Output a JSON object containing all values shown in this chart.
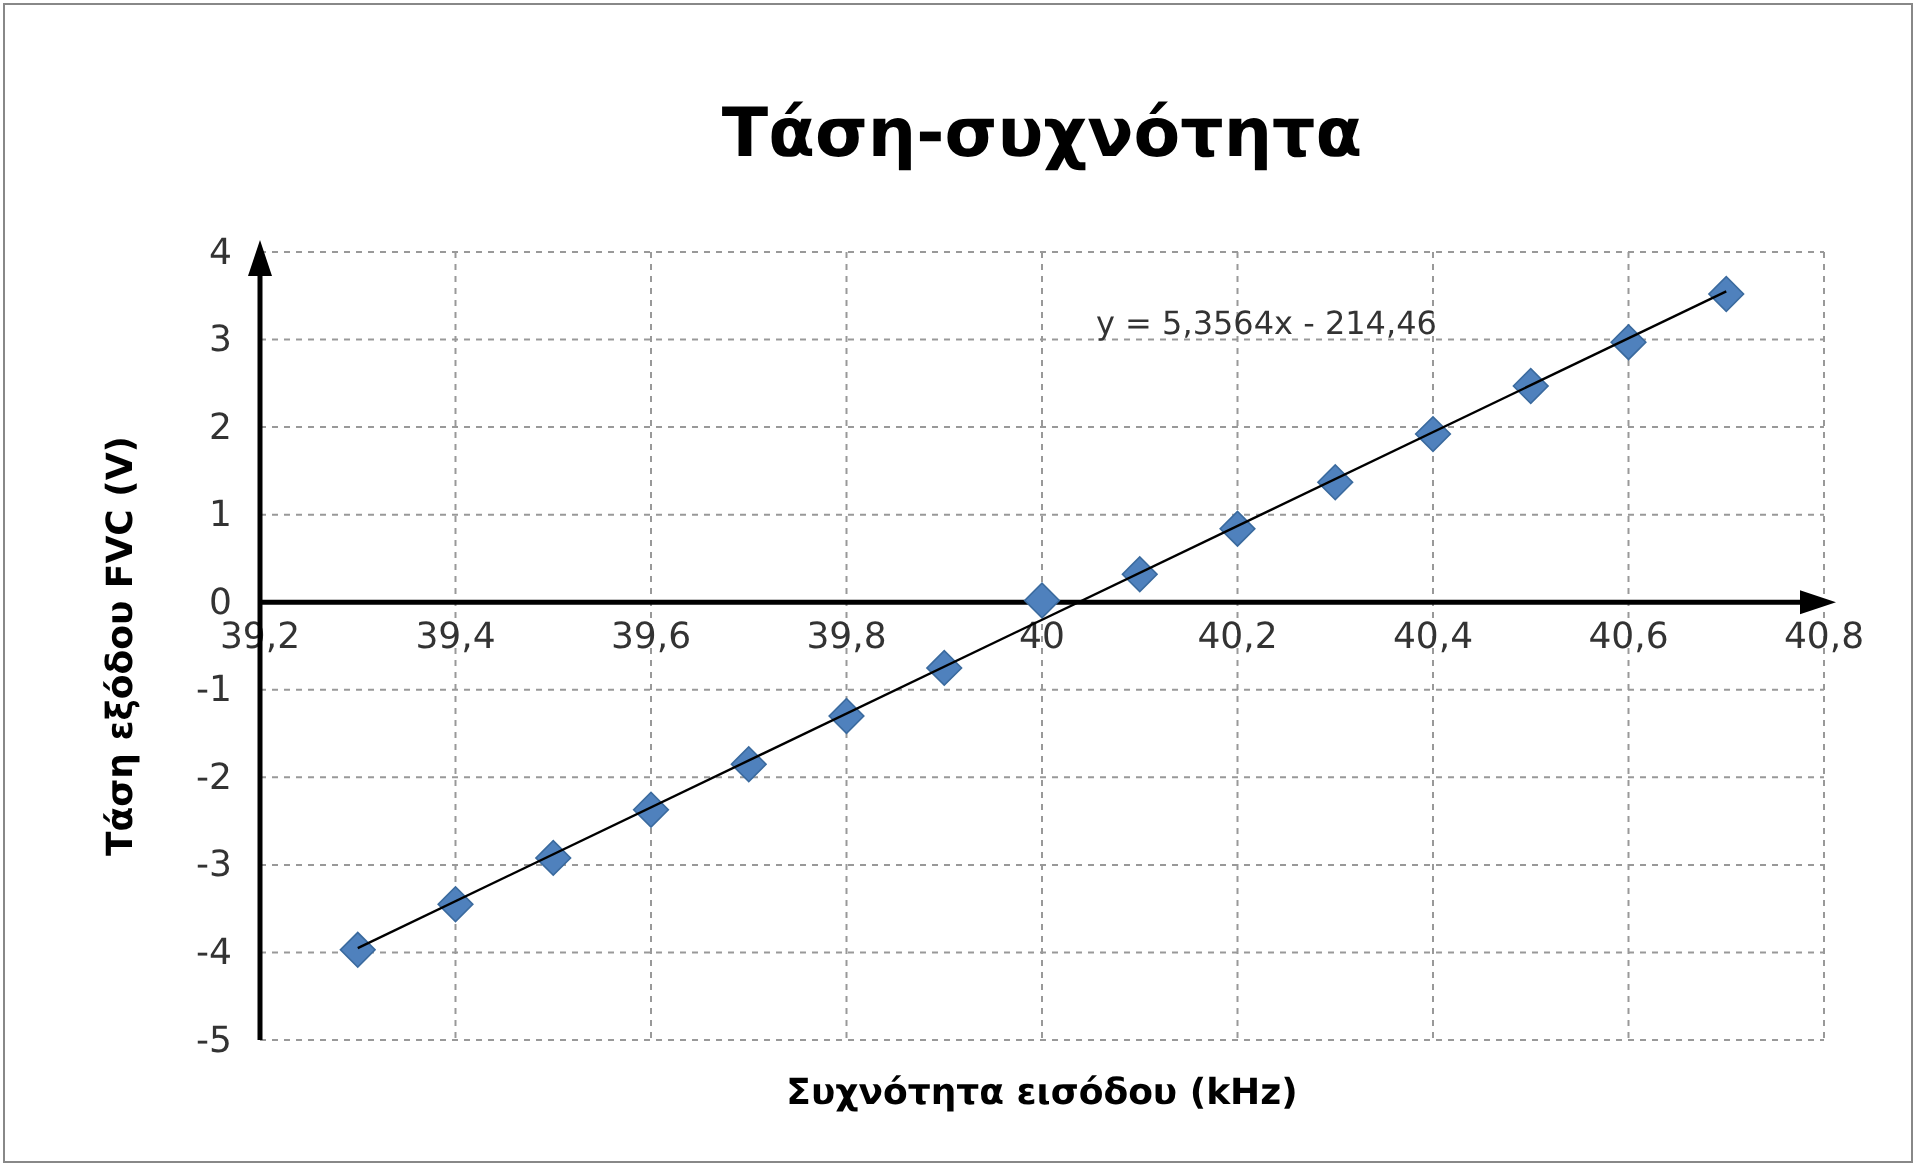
{
  "chart_data": {
    "type": "scatter",
    "title": "Τάση-συχνότητα",
    "xlabel": "Συχνότητα εισόδου (kHz)",
    "ylabel": "Τάση εξόδου FVC (V)",
    "xlim": [
      39.2,
      40.8
    ],
    "xticks": [
      {
        "value": 39.2,
        "label": "39,2"
      },
      {
        "value": 39.4,
        "label": "39,4"
      },
      {
        "value": 39.6,
        "label": "39,6"
      },
      {
        "value": 39.8,
        "label": "39,8"
      },
      40,
      {
        "value": 40.2,
        "label": "40,2"
      },
      {
        "value": 40.4,
        "label": "40,4"
      },
      {
        "value": 40.6,
        "label": "40,6"
      },
      {
        "value": 40.8,
        "label": "40,8"
      }
    ],
    "ylim": [
      -5,
      4
    ],
    "yticks": [
      -5,
      -4,
      -3,
      -2,
      -1,
      0,
      1,
      2,
      3,
      4
    ],
    "grid": true,
    "marker": "diamond",
    "annotations": [
      "y = 5,3564x - 214,46"
    ],
    "series": [
      {
        "color": "#4f81bd",
        "x": [
          39.3,
          39.4,
          39.5,
          39.6,
          39.7,
          39.8,
          39.9,
          40.0,
          40.1,
          40.2,
          40.3,
          40.4,
          40.5,
          40.6,
          40.7
        ],
        "values": [
          -3.97,
          -3.45,
          -2.92,
          -2.37,
          -1.85,
          -1.3,
          -0.75,
          0.02,
          0.32,
          0.84,
          1.37,
          1.92,
          2.47,
          2.97,
          3.52
        ]
      },
      {
        "type": "line",
        "color": "#000000",
        "marker": "none",
        "x": [
          39.3,
          40.7
        ],
        "values": [
          -3.95,
          3.55
        ]
      }
    ]
  }
}
